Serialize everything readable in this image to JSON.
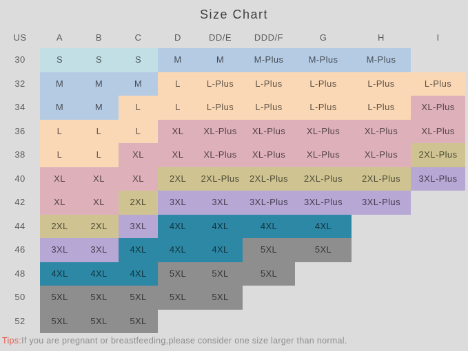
{
  "title": "Size Chart",
  "colors": {
    "background": "#dcdcdc",
    "cyan": "#c3dfe6",
    "blue": "#b5cbe4",
    "peach": "#fbd8b5",
    "rose": "#ddb0ba",
    "olive": "#cfc491",
    "purple": "#b6a7d4",
    "teal": "#2d88a5",
    "gray": "#8e8e8e"
  },
  "chart_data": {
    "type": "table",
    "title": "Size Chart",
    "columns": [
      "US",
      "A",
      "B",
      "C",
      "D",
      "DD/E",
      "DDD/F",
      "G",
      "H",
      "I"
    ],
    "rows": [
      {
        "us": "30",
        "cells": [
          {
            "t": "S",
            "c": "cyan"
          },
          {
            "t": "S",
            "c": "cyan"
          },
          {
            "t": "S",
            "c": "cyan"
          },
          {
            "t": "M",
            "c": "blue"
          },
          {
            "t": "M",
            "c": "blue"
          },
          {
            "t": "M-Plus",
            "c": "blue"
          },
          {
            "t": "M-Plus",
            "c": "blue"
          },
          {
            "t": "M-Plus",
            "c": "blue"
          },
          {
            "t": "",
            "c": "none"
          }
        ]
      },
      {
        "us": "32",
        "cells": [
          {
            "t": "M",
            "c": "blue"
          },
          {
            "t": "M",
            "c": "blue"
          },
          {
            "t": "M",
            "c": "blue"
          },
          {
            "t": "L",
            "c": "peach"
          },
          {
            "t": "L-Plus",
            "c": "peach"
          },
          {
            "t": "L-Plus",
            "c": "peach"
          },
          {
            "t": "L-Plus",
            "c": "peach"
          },
          {
            "t": "L-Plus",
            "c": "peach"
          },
          {
            "t": "L-Plus",
            "c": "peach"
          }
        ]
      },
      {
        "us": "34",
        "cells": [
          {
            "t": "M",
            "c": "blue"
          },
          {
            "t": "M",
            "c": "blue"
          },
          {
            "t": "L",
            "c": "peach"
          },
          {
            "t": "L",
            "c": "peach"
          },
          {
            "t": "L-Plus",
            "c": "peach"
          },
          {
            "t": "L-Plus",
            "c": "peach"
          },
          {
            "t": "L-Plus",
            "c": "peach"
          },
          {
            "t": "L-Plus",
            "c": "peach"
          },
          {
            "t": "XL-Plus",
            "c": "rose"
          }
        ]
      },
      {
        "us": "36",
        "cells": [
          {
            "t": "L",
            "c": "peach"
          },
          {
            "t": "L",
            "c": "peach"
          },
          {
            "t": "L",
            "c": "peach"
          },
          {
            "t": "XL",
            "c": "rose"
          },
          {
            "t": "XL-Plus",
            "c": "rose"
          },
          {
            "t": "XL-Plus",
            "c": "rose"
          },
          {
            "t": "XL-Plus",
            "c": "rose"
          },
          {
            "t": "XL-Plus",
            "c": "rose"
          },
          {
            "t": "XL-Plus",
            "c": "rose"
          }
        ]
      },
      {
        "us": "38",
        "cells": [
          {
            "t": "L",
            "c": "peach"
          },
          {
            "t": "L",
            "c": "peach"
          },
          {
            "t": "XL",
            "c": "rose"
          },
          {
            "t": "XL",
            "c": "rose"
          },
          {
            "t": "XL-Plus",
            "c": "rose"
          },
          {
            "t": "XL-Plus",
            "c": "rose"
          },
          {
            "t": "XL-Plus",
            "c": "rose"
          },
          {
            "t": "XL-Plus",
            "c": "rose"
          },
          {
            "t": "2XL-Plus",
            "c": "olive"
          }
        ]
      },
      {
        "us": "40",
        "cells": [
          {
            "t": "XL",
            "c": "rose"
          },
          {
            "t": "XL",
            "c": "rose"
          },
          {
            "t": "XL",
            "c": "rose"
          },
          {
            "t": "2XL",
            "c": "olive"
          },
          {
            "t": "2XL-Plus",
            "c": "olive"
          },
          {
            "t": "2XL-Plus",
            "c": "olive"
          },
          {
            "t": "2XL-Plus",
            "c": "olive"
          },
          {
            "t": "2XL-Plus",
            "c": "olive"
          },
          {
            "t": "3XL-Plus",
            "c": "purple"
          }
        ]
      },
      {
        "us": "42",
        "cells": [
          {
            "t": "XL",
            "c": "rose"
          },
          {
            "t": "XL",
            "c": "rose"
          },
          {
            "t": "2XL",
            "c": "olive"
          },
          {
            "t": "3XL",
            "c": "purple"
          },
          {
            "t": "3XL",
            "c": "purple"
          },
          {
            "t": "3XL-Plus",
            "c": "purple"
          },
          {
            "t": "3XL-Plus",
            "c": "purple"
          },
          {
            "t": "3XL-Plus",
            "c": "purple"
          },
          {
            "t": "",
            "c": "none"
          }
        ]
      },
      {
        "us": "44",
        "cells": [
          {
            "t": "2XL",
            "c": "olive"
          },
          {
            "t": "2XL",
            "c": "olive"
          },
          {
            "t": "3XL",
            "c": "purple"
          },
          {
            "t": "4XL",
            "c": "teal"
          },
          {
            "t": "4XL",
            "c": "teal"
          },
          {
            "t": "4XL",
            "c": "teal"
          },
          {
            "t": "4XL",
            "c": "teal"
          },
          {
            "t": "",
            "c": "none"
          },
          {
            "t": "",
            "c": "none"
          }
        ]
      },
      {
        "us": "46",
        "cells": [
          {
            "t": "3XL",
            "c": "purple"
          },
          {
            "t": "3XL",
            "c": "purple"
          },
          {
            "t": "4XL",
            "c": "teal"
          },
          {
            "t": "4XL",
            "c": "teal"
          },
          {
            "t": "4XL",
            "c": "teal"
          },
          {
            "t": "5XL",
            "c": "gray"
          },
          {
            "t": "5XL",
            "c": "gray"
          },
          {
            "t": "",
            "c": "none"
          },
          {
            "t": "",
            "c": "none"
          }
        ]
      },
      {
        "us": "48",
        "cells": [
          {
            "t": "4XL",
            "c": "teal"
          },
          {
            "t": "4XL",
            "c": "teal"
          },
          {
            "t": "4XL",
            "c": "teal"
          },
          {
            "t": "5XL",
            "c": "gray"
          },
          {
            "t": "5XL",
            "c": "gray"
          },
          {
            "t": "5XL",
            "c": "gray"
          },
          {
            "t": "",
            "c": "none"
          },
          {
            "t": "",
            "c": "none"
          },
          {
            "t": "",
            "c": "none"
          }
        ]
      },
      {
        "us": "50",
        "cells": [
          {
            "t": "5XL",
            "c": "gray"
          },
          {
            "t": "5XL",
            "c": "gray"
          },
          {
            "t": "5XL",
            "c": "gray"
          },
          {
            "t": "5XL",
            "c": "gray"
          },
          {
            "t": "5XL",
            "c": "gray"
          },
          {
            "t": "",
            "c": "none"
          },
          {
            "t": "",
            "c": "none"
          },
          {
            "t": "",
            "c": "none"
          },
          {
            "t": "",
            "c": "none"
          }
        ]
      },
      {
        "us": "52",
        "cells": [
          {
            "t": "5XL",
            "c": "gray"
          },
          {
            "t": "5XL",
            "c": "gray"
          },
          {
            "t": "5XL",
            "c": "gray"
          },
          {
            "t": "",
            "c": "none"
          },
          {
            "t": "",
            "c": "none"
          },
          {
            "t": "",
            "c": "none"
          },
          {
            "t": "",
            "c": "none"
          },
          {
            "t": "",
            "c": "none"
          },
          {
            "t": "",
            "c": "none"
          }
        ]
      }
    ],
    "legend_position": "none",
    "grid": false
  },
  "footer": {
    "tips_label": "Tips:",
    "tips_text": "If you are pregnant or breastfeeding,please consider one size larger than normal."
  }
}
